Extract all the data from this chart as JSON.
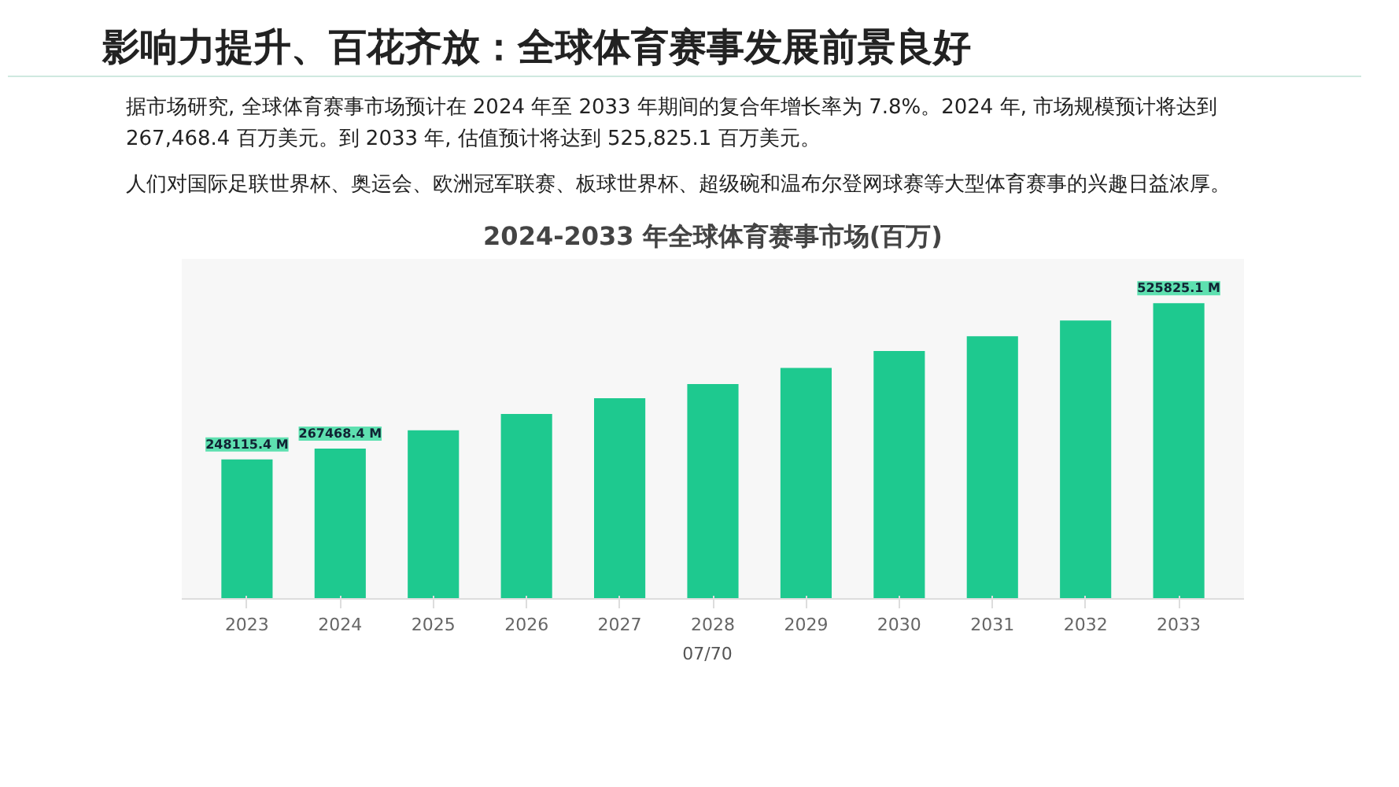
{
  "chart_data": {
    "type": "bar",
    "title": "影响力提升、百花齐放：全球体育赛事发展前景良好",
    "subtitle": "2024-2033 年全球体育赛事市场(百万)",
    "annotations": [
      "据市场研究, 全球体育赛事市场预计在 2024 年至 2033 年期间的复合年增长率为 7.8%。2024 年, 市场规模预计将达到 267,468.4 百万美元。到 2033 年, 估值预计将达到 525,825.1 百万美元。",
      "人们对国际足联世界杯、奥运会、欧洲冠军联赛、板球世界杯、超级碗和温布尔登网球赛等大型体育赛事的兴趣日益浓厚。",
      "07/70"
    ],
    "categories": [
      "2023",
      "2024",
      "2025",
      "2026",
      "2027",
      "2028",
      "2029",
      "2030",
      "2031",
      "2032",
      "2033"
    ],
    "values": [
      248115.4,
      267468.4,
      300000,
      329000,
      357000,
      382000,
      411000,
      441000,
      467000,
      495000,
      525825.1
    ],
    "value_labels": [
      "248115.4 M",
      "267468.4 M",
      null,
      null,
      null,
      null,
      null,
      null,
      null,
      null,
      "525825.1 M"
    ],
    "color": "#1ec98f",
    "grid": false
  }
}
